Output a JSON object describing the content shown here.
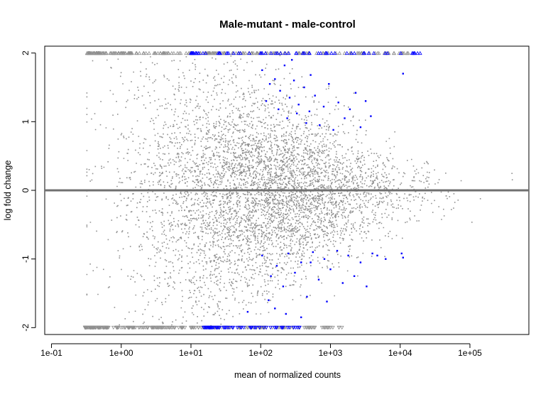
{
  "chart_data": {
    "type": "scatter",
    "title": "Male-mutant - male-control",
    "xlabel": "mean of normalized counts",
    "ylabel": "log fold change",
    "x_scale": "log10",
    "xlim": [
      0.08,
      700000
    ],
    "ylim": [
      -2.1,
      2.1
    ],
    "x_ticks": [
      {
        "value": 0.1,
        "label": "1e-01"
      },
      {
        "value": 1,
        "label": "1e+00"
      },
      {
        "value": 10,
        "label": "1e+01"
      },
      {
        "value": 100,
        "label": "1e+02"
      },
      {
        "value": 1000,
        "label": "1e+03"
      },
      {
        "value": 10000,
        "label": "1e+04"
      },
      {
        "value": 100000,
        "label": "1e+05"
      }
    ],
    "y_ticks": [
      {
        "value": -2,
        "label": "-2"
      },
      {
        "value": -1,
        "label": "-1"
      },
      {
        "value": 0,
        "label": "0"
      },
      {
        "value": 1,
        "label": "1"
      },
      {
        "value": 2,
        "label": "2"
      }
    ],
    "grid": false,
    "legend": "none",
    "reference_line": {
      "y": 0,
      "color": "#707070"
    },
    "colors": {
      "not_significant": "#909090",
      "significant": "#0000ff"
    },
    "series": [
      {
        "values": [
          {
            "x": 105,
            "y": 1.75
          },
          {
            "x": 135,
            "y": 1.55
          },
          {
            "x": 160,
            "y": 1.62
          },
          {
            "x": 190,
            "y": 1.45
          },
          {
            "x": 220,
            "y": 1.82
          },
          {
            "x": 260,
            "y": 1.35
          },
          {
            "x": 300,
            "y": 1.6
          },
          {
            "x": 350,
            "y": 1.25
          },
          {
            "x": 420,
            "y": 1.5
          },
          {
            "x": 500,
            "y": 1.15
          },
          {
            "x": 600,
            "y": 1.38
          },
          {
            "x": 700,
            "y": 0.95
          },
          {
            "x": 800,
            "y": 1.22
          },
          {
            "x": 950,
            "y": 1.55
          },
          {
            "x": 1100,
            "y": 0.88
          },
          {
            "x": 1300,
            "y": 1.28
          },
          {
            "x": 1600,
            "y": 1.05
          },
          {
            "x": 1900,
            "y": 1.18
          },
          {
            "x": 2300,
            "y": 1.42
          },
          {
            "x": 2700,
            "y": 0.92
          },
          {
            "x": 3200,
            "y": 1.3
          },
          {
            "x": 3800,
            "y": 1.08
          },
          {
            "x": 11000,
            "y": 1.7
          },
          {
            "x": 180,
            "y": 1.18
          },
          {
            "x": 240,
            "y": 1.05
          },
          {
            "x": 330,
            "y": 1.12
          },
          {
            "x": 450,
            "y": 0.98
          },
          {
            "x": 120,
            "y": 1.3
          },
          {
            "x": 280,
            "y": 1.9
          },
          {
            "x": 520,
            "y": 1.68
          },
          {
            "x": 105,
            "y": -0.95
          },
          {
            "x": 140,
            "y": -1.25
          },
          {
            "x": 170,
            "y": -1.1
          },
          {
            "x": 210,
            "y": -1.4
          },
          {
            "x": 250,
            "y": -0.92
          },
          {
            "x": 310,
            "y": -1.2
          },
          {
            "x": 380,
            "y": -1.05
          },
          {
            "x": 460,
            "y": -1.55
          },
          {
            "x": 560,
            "y": -0.9
          },
          {
            "x": 680,
            "y": -1.3
          },
          {
            "x": 820,
            "y": -1.0
          },
          {
            "x": 1000,
            "y": -1.15
          },
          {
            "x": 1250,
            "y": -0.88
          },
          {
            "x": 1500,
            "y": -1.35
          },
          {
            "x": 1800,
            "y": -0.95
          },
          {
            "x": 2200,
            "y": -1.25
          },
          {
            "x": 2700,
            "y": -1.05
          },
          {
            "x": 3300,
            "y": -1.4
          },
          {
            "x": 4000,
            "y": -0.92
          },
          {
            "x": 4700,
            "y": -0.95
          },
          {
            "x": 6200,
            "y": -1.0
          },
          {
            "x": 11000,
            "y": -0.98
          },
          {
            "x": 10500,
            "y": -0.92
          },
          {
            "x": 160,
            "y": -1.72
          },
          {
            "x": 230,
            "y": -1.8
          },
          {
            "x": 380,
            "y": -1.85
          },
          {
            "x": 65,
            "y": -1.77
          },
          {
            "x": 130,
            "y": -1.6
          },
          {
            "x": 520,
            "y": -1.05
          },
          {
            "x": 890,
            "y": -1.62
          }
        ]
      }
    ],
    "capped_points": {
      "upper_y": 2,
      "lower_y": -2,
      "upper_gray_x_range": [
        0.32,
        14000
      ],
      "upper_blue_x_range": [
        10,
        24000
      ],
      "lower_gray_x_range": [
        0.3,
        1500
      ],
      "lower_blue_x_range": [
        15,
        400
      ]
    }
  }
}
